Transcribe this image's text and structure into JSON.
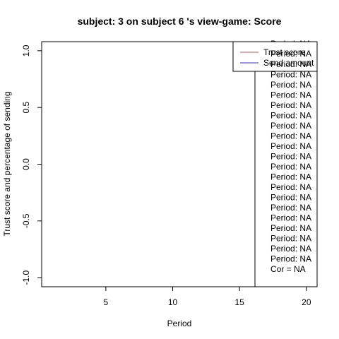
{
  "chart_data": {
    "type": "line",
    "title": "subject:  3  on subject  6 's view-game:  Score",
    "xlabel": "Period",
    "ylabel": "Trust score and percentage of sending",
    "xlim": [
      0.2,
      20.8
    ],
    "ylim": [
      -1.08,
      1.08
    ],
    "x_ticks": [
      5,
      10,
      15,
      20
    ],
    "y_ticks": [
      -1.0,
      -0.5,
      0.0,
      0.5,
      1.0
    ],
    "x_tick_labels": [
      "5",
      "10",
      "15",
      "20"
    ],
    "y_tick_labels": [
      "-1.0",
      "-0.5",
      "0.0",
      "0.5",
      "1.0"
    ],
    "grid": false,
    "legend_position": "top-right",
    "series": [
      {
        "name": "Trust score",
        "color": "#c0504d",
        "values": []
      },
      {
        "name": "Send amount",
        "color": "#3333cc",
        "values": []
      }
    ],
    "annotations": {
      "periods": [
        "Period:  NA",
        "Period:  NA",
        "Period:  NA",
        "Period:  NA",
        "Period:  NA",
        "Period:  NA",
        "Period:  NA",
        "Period:  NA",
        "Period:  NA",
        "Period:  NA",
        "Period:  NA",
        "Period:  NA",
        "Period:  NA",
        "Period:  NA",
        "Period:  NA",
        "Period:  NA",
        "Period:  NA",
        "Period:  NA",
        "Period:  NA",
        "Period:  NA",
        "Period:  NA",
        "Period:  NA"
      ],
      "correlation": "Cor =  NA"
    }
  }
}
